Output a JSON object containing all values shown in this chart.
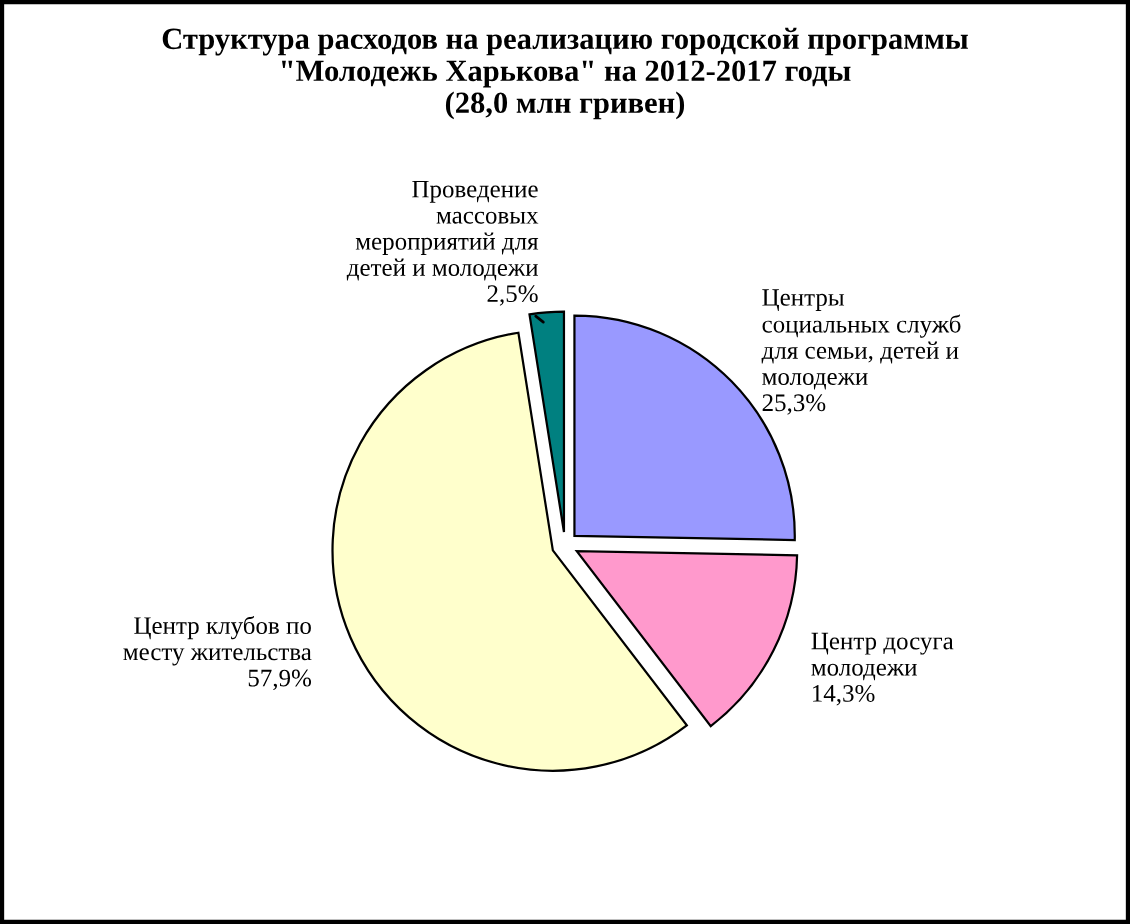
{
  "chart_data": {
    "type": "pie",
    "title": "Структура расходов на реализацию городской программы\n\"Молодежь Харькова\" на 2012-2017 годы\n(28,0 млн гривен)",
    "categories": [
      "Центры\nсоциальных служб\nдля семьи, детей и\nмолодежи",
      "Центр досуга\nмолодежи",
      "Центр клубов по\nместу жительства",
      "Проведение\nмассовых\nмероприятий для\nдетей и молодежи"
    ],
    "values": [
      25.3,
      14.3,
      57.9,
      2.5
    ],
    "value_labels": [
      "25,3%",
      "14,3%",
      "57,9%",
      "2,5%"
    ],
    "colors": [
      "#9999ff",
      "#ff99cc",
      "#ffffcc",
      "#008080"
    ],
    "legend": false
  }
}
